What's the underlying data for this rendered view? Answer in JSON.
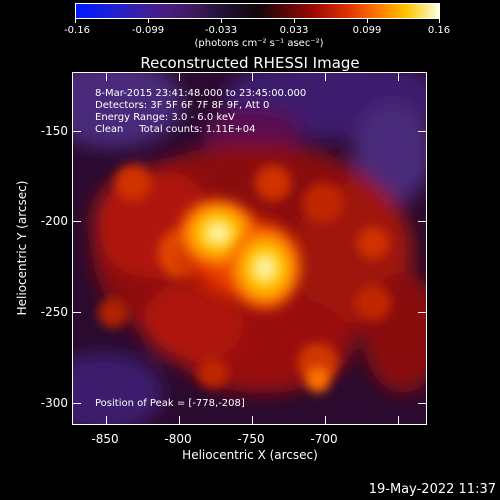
{
  "colorbar": {
    "ticks": [
      "-0.16",
      "-0.099",
      "-0.033",
      "0.033",
      "0.099",
      "0.16"
    ],
    "units": "(photons cm⁻² s⁻¹ asec⁻²)"
  },
  "title": "Reconstructed RHESSI Image",
  "info": {
    "time_range": "8-Mar-2015 23:41:48.000 to 23:45:00.000",
    "detectors": "Detectors: 3F 5F 6F 7F 8F 9F, Att 0",
    "energy": "Energy Range: 3.0 - 6.0 keV",
    "clean": "Clean     Total counts: 1.11E+04",
    "peak": "Position of Peak = [-778,-208]"
  },
  "axes": {
    "x_label": "Heliocentric X (arcsec)",
    "y_label": "Heliocentric Y (arcsec)",
    "x_ticks": [
      "-850",
      "-800",
      "-750",
      "-700"
    ],
    "y_ticks": [
      "-150",
      "-200",
      "-250",
      "-300"
    ]
  },
  "footer": {
    "timestamp": "19-May-2022 11:37"
  },
  "colors": {
    "background": "#000000",
    "text": "#ffffff"
  }
}
